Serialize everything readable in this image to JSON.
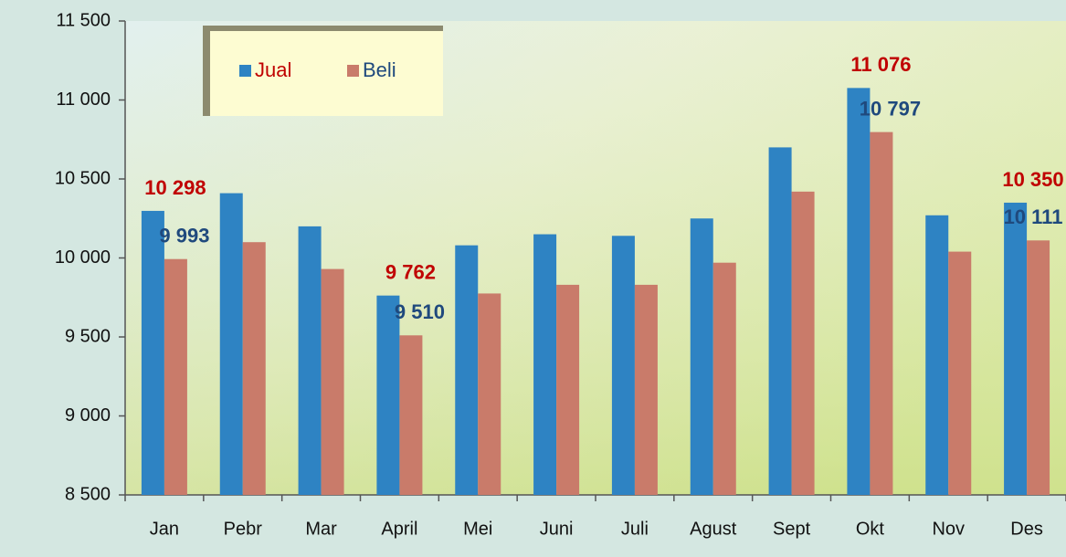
{
  "chart_data": {
    "type": "bar",
    "categories": [
      "Jan",
      "Pebr",
      "Mar",
      "April",
      "Mei",
      "Juni",
      "Juli",
      "Agust",
      "Sept",
      "Okt",
      "Nov",
      "Des"
    ],
    "series": [
      {
        "name": "Jual",
        "color": "#2e83c3",
        "label_color": "#c00000",
        "values": [
          10298,
          10410,
          10200,
          9762,
          10080,
          10150,
          10140,
          10250,
          10700,
          11076,
          10270,
          10350
        ],
        "value_labels": [
          "10 298",
          null,
          null,
          "9 762",
          null,
          null,
          null,
          null,
          null,
          "11 076",
          null,
          "10 350"
        ]
      },
      {
        "name": "Beli",
        "color": "#c97b6a",
        "label_color": "#1f497d",
        "values": [
          9993,
          10100,
          9930,
          9510,
          9775,
          9830,
          9830,
          9970,
          10420,
          10797,
          10040,
          10111
        ],
        "value_labels": [
          "9 993",
          null,
          null,
          "9 510",
          null,
          null,
          null,
          null,
          null,
          "10 797",
          null,
          "10 111"
        ]
      }
    ],
    "ylim": [
      8500,
      11500
    ],
    "yticks": [
      {
        "value": 8500,
        "label": "8 500"
      },
      {
        "value": 9000,
        "label": "9 000"
      },
      {
        "value": 9500,
        "label": "9 500"
      },
      {
        "value": 10000,
        "label": "10 000"
      },
      {
        "value": 10500,
        "label": "10 500"
      },
      {
        "value": 11000,
        "label": "11 000"
      },
      {
        "value": 11500,
        "label": "11 500"
      }
    ],
    "grid": false,
    "legend": "top-left"
  }
}
